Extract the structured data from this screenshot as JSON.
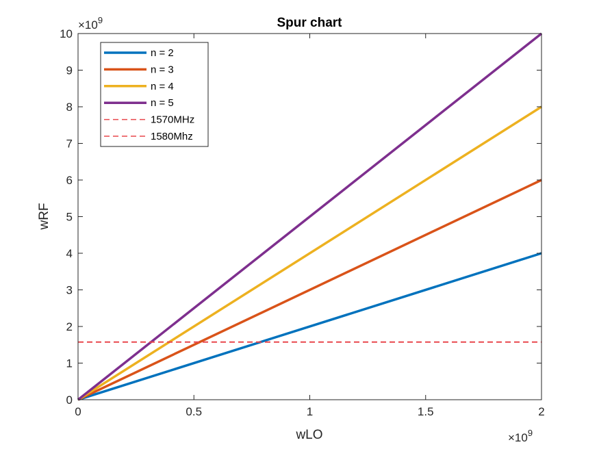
{
  "chart_data": {
    "type": "line",
    "title": "Spur chart",
    "xlabel": "wLO",
    "ylabel": "wRF",
    "x_exponent": "9",
    "y_exponent": "9",
    "exponent_base": "×10",
    "xlim": [
      0,
      2
    ],
    "ylim": [
      0,
      10
    ],
    "x_ticks": [
      0,
      0.5,
      1,
      1.5,
      2
    ],
    "x_tick_labels": [
      "0",
      "0.5",
      "1",
      "1.5",
      "2"
    ],
    "y_ticks": [
      0,
      1,
      2,
      3,
      4,
      5,
      6,
      7,
      8,
      9,
      10
    ],
    "y_tick_labels": [
      "0",
      "1",
      "2",
      "3",
      "4",
      "5",
      "6",
      "7",
      "8",
      "9",
      "10"
    ],
    "grid": false,
    "legend_position": "top-left",
    "series": [
      {
        "name": "n = 2",
        "x": [
          0,
          2
        ],
        "y": [
          0,
          4
        ],
        "color": "#0072BD",
        "style": "solid"
      },
      {
        "name": "n = 3",
        "x": [
          0,
          2
        ],
        "y": [
          0,
          6
        ],
        "color": "#D95319",
        "style": "solid"
      },
      {
        "name": "n = 4",
        "x": [
          0,
          2
        ],
        "y": [
          0,
          8
        ],
        "color": "#EDB120",
        "style": "solid"
      },
      {
        "name": "n = 5",
        "x": [
          0,
          2
        ],
        "y": [
          0,
          10
        ],
        "color": "#7E2F8E",
        "style": "solid"
      },
      {
        "name": "1570MHz",
        "x": [
          0,
          2
        ],
        "y": [
          1.57,
          1.57
        ],
        "color": "#E8474C",
        "style": "dashed"
      },
      {
        "name": "1580Mhz",
        "x": [
          0,
          2
        ],
        "y": [
          1.58,
          1.58
        ],
        "color": "#E8474C",
        "style": "dashed"
      }
    ]
  }
}
